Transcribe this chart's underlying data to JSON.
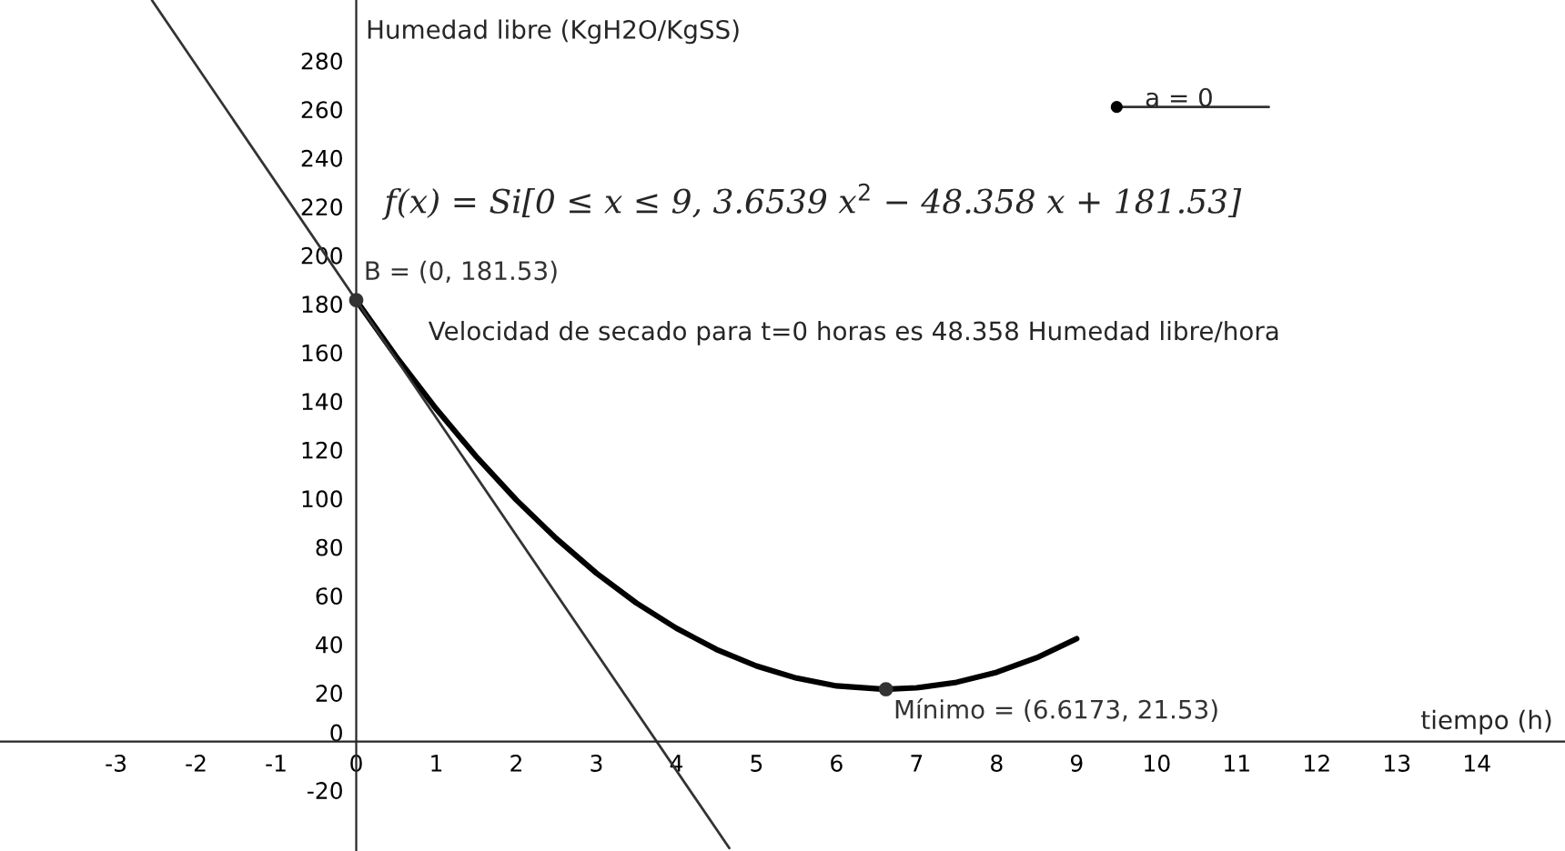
{
  "chart_data": {
    "type": "line",
    "xlabel": "tiempo (h)",
    "ylabel": "Humedad libre (KgH2O/KgSS)",
    "xlim": [
      -4.45,
      15.1
    ],
    "ylim": [
      -45,
      305
    ],
    "xticks": [
      -3,
      -2,
      -1,
      0,
      1,
      2,
      3,
      4,
      5,
      6,
      7,
      8,
      9,
      10,
      11,
      12,
      13,
      14
    ],
    "yticks": [
      -20,
      0,
      20,
      40,
      60,
      80,
      100,
      120,
      140,
      160,
      180,
      200,
      220,
      240,
      260,
      280
    ],
    "grid": false,
    "series": [
      {
        "color": "#000000",
        "x": [
          0,
          0.5,
          1,
          1.5,
          2,
          2.5,
          3,
          3.5,
          4,
          4.5,
          5,
          5.5,
          6,
          6.6,
          7,
          7.5,
          8,
          8.5,
          9
        ],
        "values": [
          181.5,
          158.3,
          136.8,
          117.2,
          99.4,
          83.5,
          69.3,
          57.0,
          46.6,
          37.9,
          31.1,
          26.1,
          22.9,
          21.5,
          22.1,
          24.4,
          28.5,
          34.5,
          42.3
        ]
      },
      {
        "color": "#333333",
        "x": [
          -2.55,
          4.66
        ],
        "values": [
          304.8,
          -43.8
        ]
      },
      {
        "type": "scatter",
        "color": "#333333",
        "x": [
          0,
          6.6173
        ],
        "values": [
          181.53,
          21.53
        ]
      }
    ],
    "annotations": [
      "f(x) = Si[0 ≤ x ≤ 9, 3.6539 x$^{2}$ − 48.358 x + 181.53]",
      "Velocidad de secado para t=0 horas es 48.358 Humedad libre/hora",
      "a = 0",
      {
        "text": "B = (0, 181.53)",
        "x": 0,
        "y": 181.53
      },
      {
        "text": "Mínimo = (6.6173, 21.53)",
        "x": 6.6173,
        "y": 21.53
      }
    ]
  }
}
